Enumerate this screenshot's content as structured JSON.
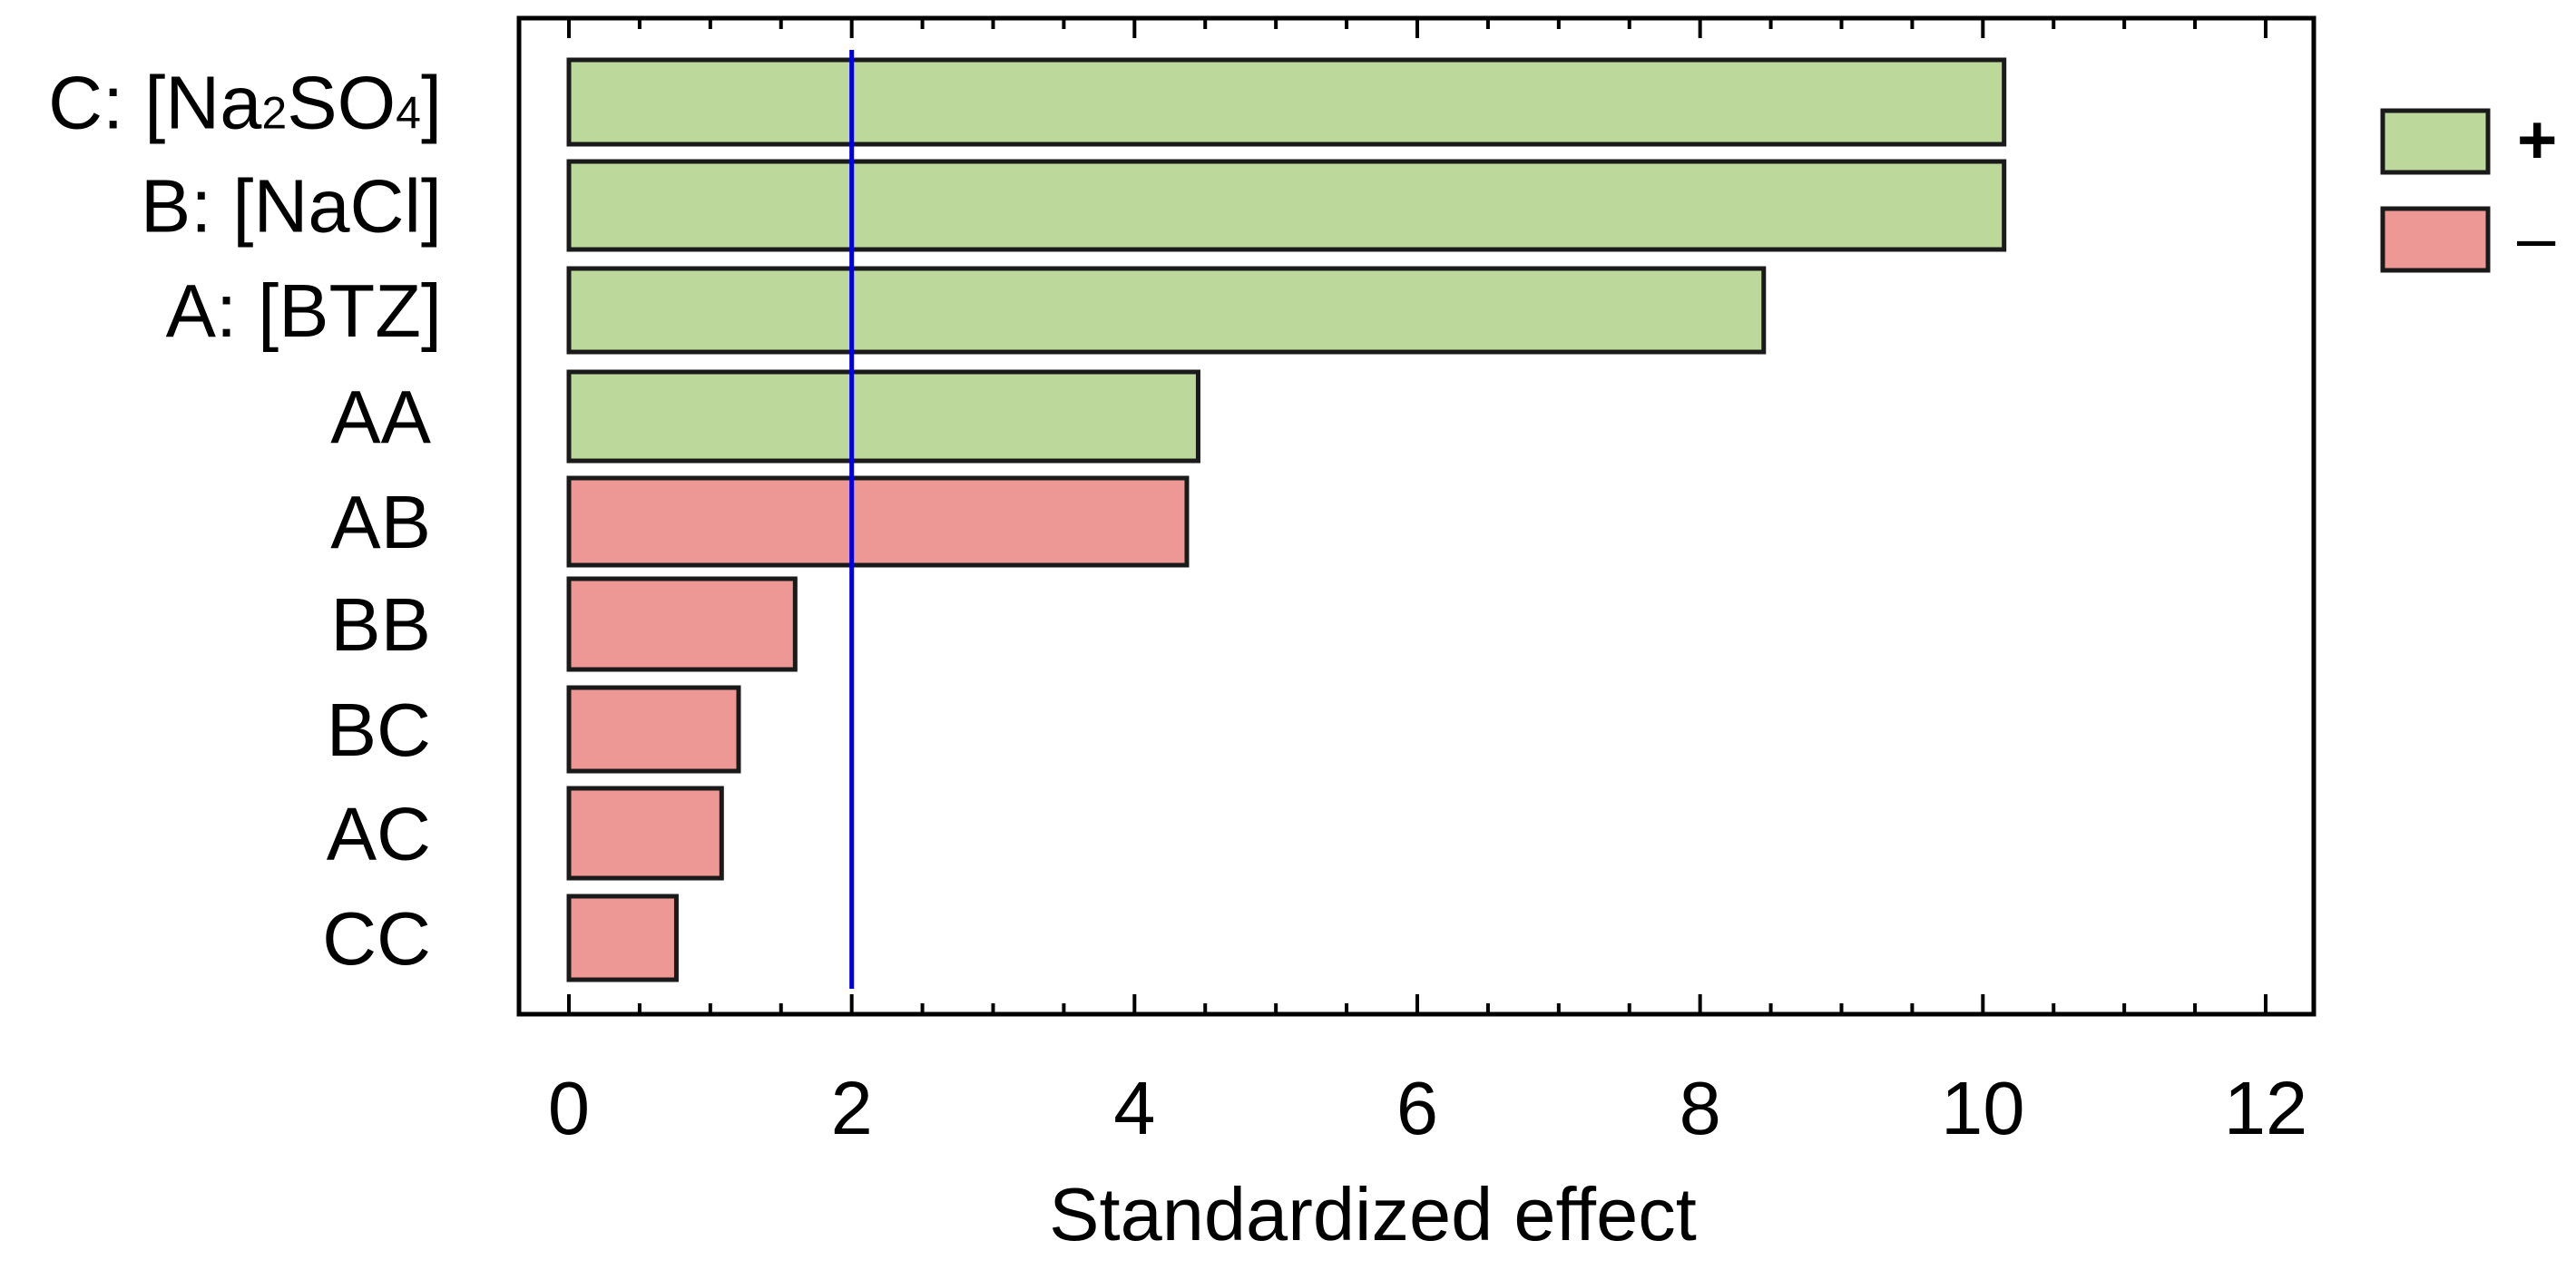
{
  "chart_data": {
    "type": "bar",
    "orientation": "horizontal",
    "title": "",
    "xlabel": "Standardized effect",
    "ylabel": "",
    "xlim": [
      -0.35,
      12.35
    ],
    "xticks": [
      0,
      2,
      4,
      6,
      8,
      10,
      12
    ],
    "xtick_labels": [
      "0",
      "2",
      "4",
      "6",
      "8",
      "10",
      "12"
    ],
    "categories": [
      {
        "label": "C: [Na",
        "sub1": "2",
        "mid": "SO",
        "sub2": "4",
        "end": "]",
        "value": 10.15,
        "sign": "+"
      },
      {
        "label": "B: [NaCl]",
        "value": 10.15,
        "sign": "+"
      },
      {
        "label": "A: [BTZ]",
        "value": 8.45,
        "sign": "+"
      },
      {
        "label": "AA",
        "value": 4.45,
        "sign": "+"
      },
      {
        "label": "AB",
        "value": 4.37,
        "sign": "-"
      },
      {
        "label": "BB",
        "value": 1.6,
        "sign": "-"
      },
      {
        "label": "BC",
        "value": 1.2,
        "sign": "-"
      },
      {
        "label": "AC",
        "value": 1.08,
        "sign": "-"
      },
      {
        "label": "CC",
        "value": 0.76,
        "sign": "-"
      }
    ],
    "reference_line": {
      "value": 2.0,
      "color": "#0000e0"
    },
    "legend": {
      "position": "right-top",
      "entries": [
        {
          "label": "+",
          "color": "#bcd99b"
        },
        {
          "label": "–",
          "color": "#ee9896"
        }
      ]
    },
    "colors": {
      "positive": "#bcd99b",
      "negative": "#ee9896",
      "bar_stroke": "#1a1a1a",
      "axis": "#000000"
    }
  }
}
